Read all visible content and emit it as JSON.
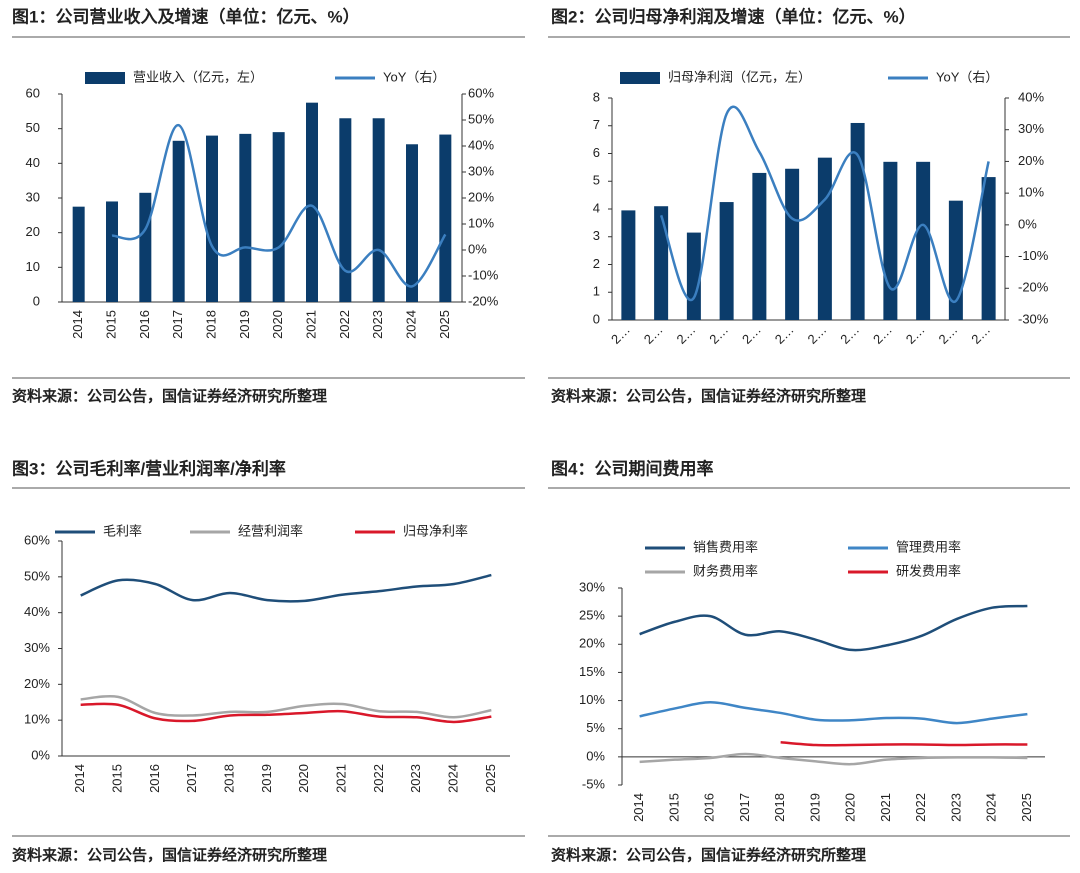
{
  "chart_data": [
    {
      "type": "bar",
      "title": "图1：公司营业收入及增速（单位：亿元、%）",
      "source": "资料来源：公司公告，国信证券经济研究所整理",
      "categories": [
        "2014",
        "2015",
        "2016",
        "2017",
        "2018",
        "2019",
        "2020",
        "2021",
        "2022",
        "2023",
        "2024",
        "2025"
      ],
      "series": [
        {
          "name": "营业收入（亿元，左）",
          "type": "bar",
          "color": "#0b3c6b",
          "values": [
            27.5,
            29,
            31.5,
            46.5,
            48,
            48.5,
            49,
            57.5,
            53,
            53,
            45.5,
            48.3
          ]
        },
        {
          "name": "YoY（右）",
          "type": "line",
          "axis": "y2",
          "color": "#3b7fc0",
          "values": [
            null,
            5.5,
            8,
            48,
            1.5,
            1,
            1,
            17,
            -8,
            0,
            -14,
            6
          ]
        }
      ],
      "ylim": [
        0,
        60
      ],
      "yticks": [
        0,
        10,
        20,
        30,
        40,
        50,
        60
      ],
      "y2lim": [
        -20,
        60
      ],
      "y2ticks": [
        {
          "value": -20,
          "label": "-20%"
        },
        {
          "value": -10,
          "label": "-10%"
        },
        {
          "value": 0,
          "label": "0%"
        },
        {
          "value": 10,
          "label": "10%"
        },
        {
          "value": 20,
          "label": "20%"
        },
        {
          "value": 30,
          "label": "30%"
        },
        {
          "value": 40,
          "label": "40%"
        },
        {
          "value": 50,
          "label": "50%"
        },
        {
          "value": 60,
          "label": "60%"
        }
      ]
    },
    {
      "type": "bar",
      "title": "图2：公司归母净利润及增速（单位：亿元、%）",
      "source": "资料来源：公司公告，国信证券经济研究所整理",
      "categories": [
        "2…",
        "2…",
        "2…",
        "2…",
        "2…",
        "2…",
        "2…",
        "2…",
        "2…",
        "2…",
        "2…",
        "2…"
      ],
      "series": [
        {
          "name": "归母净利润（亿元，左）",
          "type": "bar",
          "color": "#0b3c6b",
          "values": [
            3.95,
            4.1,
            3.15,
            4.25,
            5.3,
            5.45,
            5.85,
            7.1,
            5.7,
            5.7,
            4.3,
            5.15
          ]
        },
        {
          "name": "YoY（右）",
          "type": "line",
          "axis": "y2",
          "color": "#3b7fc0",
          "values": [
            null,
            3,
            -23,
            35,
            23,
            2,
            8,
            22,
            -20,
            0,
            -24,
            20
          ]
        }
      ],
      "ylim": [
        0,
        8
      ],
      "yticks": [
        0,
        1,
        2,
        3,
        4,
        5,
        6,
        7,
        8
      ],
      "y2lim": [
        -30,
        40
      ],
      "y2ticks": [
        {
          "value": -30,
          "label": "-30%"
        },
        {
          "value": -20,
          "label": "-20%"
        },
        {
          "value": -10,
          "label": "-10%"
        },
        {
          "value": 0,
          "label": "0%"
        },
        {
          "value": 10,
          "label": "10%"
        },
        {
          "value": 20,
          "label": "20%"
        },
        {
          "value": 30,
          "label": "30%"
        },
        {
          "value": 40,
          "label": "40%"
        }
      ]
    },
    {
      "type": "line",
      "title": "图3：公司毛利率/营业利润率/净利率",
      "source": "资料来源：公司公告，国信证券经济研究所整理",
      "categories": [
        "2014",
        "2015",
        "2016",
        "2017",
        "2018",
        "2019",
        "2020",
        "2021",
        "2022",
        "2023",
        "2024",
        "2025"
      ],
      "series": [
        {
          "name": "毛利率",
          "color": "#1f4e79",
          "values": [
            44.8,
            49,
            48,
            43.5,
            45.5,
            43.5,
            43.3,
            45,
            46,
            47.3,
            48,
            50.5
          ]
        },
        {
          "name": "经营利润率",
          "color": "#a6a6a6",
          "values": [
            15.8,
            16.5,
            12,
            11.3,
            12.3,
            12.3,
            14,
            14.5,
            12.5,
            12.3,
            10.8,
            12.8
          ]
        },
        {
          "name": "归母净利率",
          "color": "#d9182a",
          "values": [
            14.3,
            14.3,
            10.5,
            9.8,
            11.3,
            11.5,
            12,
            12.5,
            11,
            10.8,
            9.5,
            11
          ]
        }
      ],
      "ylim": [
        0,
        60
      ],
      "yticks": [
        {
          "value": 0,
          "label": "0%"
        },
        {
          "value": 10,
          "label": "10%"
        },
        {
          "value": 20,
          "label": "20%"
        },
        {
          "value": 30,
          "label": "30%"
        },
        {
          "value": 40,
          "label": "40%"
        },
        {
          "value": 50,
          "label": "50%"
        },
        {
          "value": 60,
          "label": "60%"
        }
      ]
    },
    {
      "type": "line",
      "title": "图4：公司期间费用率",
      "source": "资料来源：公司公告，国信证券经济研究所整理",
      "categories": [
        "2014",
        "2015",
        "2016",
        "2017",
        "2018",
        "2019",
        "2020",
        "2021",
        "2022",
        "2023",
        "2024",
        "2025"
      ],
      "series": [
        {
          "name": "销售费用率",
          "color": "#1f4e79",
          "values": [
            21.8,
            24,
            25,
            21.7,
            22.3,
            20.8,
            19,
            19.8,
            21.5,
            24.5,
            26.5,
            26.8
          ]
        },
        {
          "name": "管理费用率",
          "color": "#3f86c6",
          "values": [
            7.2,
            8.6,
            9.7,
            8.7,
            7.8,
            6.6,
            6.5,
            6.9,
            6.8,
            6,
            6.8,
            7.6
          ]
        },
        {
          "name": "财务费用率",
          "color": "#a6a6a6",
          "values": [
            -0.9,
            -0.5,
            -0.2,
            0.5,
            -0.2,
            -0.8,
            -1.3,
            -0.5,
            -0.2,
            -0.1,
            -0.1,
            -0.2
          ]
        },
        {
          "name": "研发费用率",
          "color": "#d9182a",
          "values": [
            null,
            null,
            null,
            null,
            2.6,
            2.1,
            2.1,
            2.2,
            2.2,
            2.1,
            2.2,
            2.2
          ]
        }
      ],
      "ylim": [
        -5,
        30
      ],
      "yticks": [
        {
          "value": -5,
          "label": "-5%"
        },
        {
          "value": 0,
          "label": "0%"
        },
        {
          "value": 5,
          "label": "5%"
        },
        {
          "value": 10,
          "label": "10%"
        },
        {
          "value": 15,
          "label": "15%"
        },
        {
          "value": 20,
          "label": "20%"
        },
        {
          "value": 25,
          "label": "25%"
        },
        {
          "value": 30,
          "label": "30%"
        }
      ]
    }
  ]
}
